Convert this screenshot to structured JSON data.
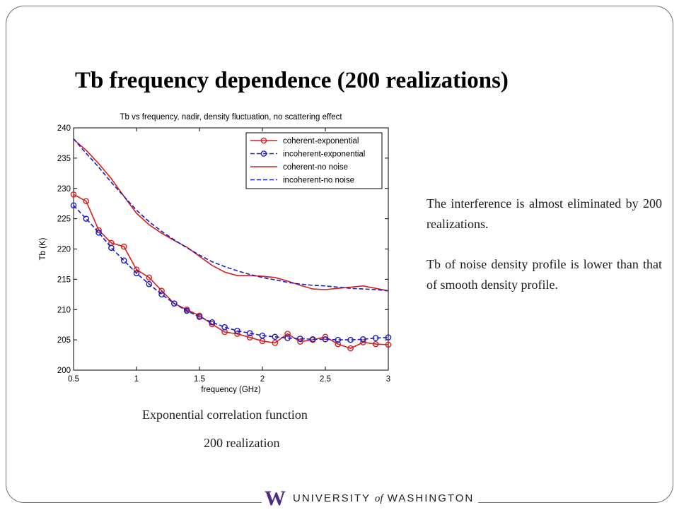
{
  "slide": {
    "title": "Tb frequency dependence (200 realizations)",
    "captions": [
      "Exponential correlation function",
      "200 realization"
    ],
    "paragraphs": [
      "The interference is almost eliminated by 200 realizations.",
      "Tb of noise density profile is lower than that of smooth density profile."
    ],
    "footer": {
      "mark": "W",
      "name_pre": "UNIVERSITY ",
      "name_of": "of",
      "name_post": " WASHINGTON",
      "brand_color": "#4b2e83"
    }
  },
  "chart_data": {
    "type": "line",
    "title": "Tb vs frequency, nadir, density fluctuation, no scattering effect",
    "xlabel": "frequency (GHz)",
    "ylabel": "Tb (K)",
    "xlim": [
      0.5,
      3
    ],
    "ylim": [
      200,
      240
    ],
    "xticks": [
      0.5,
      1,
      1.5,
      2,
      2.5,
      3
    ],
    "xtick_labels": [
      "0.5",
      "1",
      "1.5",
      "2",
      "2.5",
      "3"
    ],
    "yticks": [
      200,
      205,
      210,
      215,
      220,
      225,
      230,
      235,
      240
    ],
    "ytick_labels": [
      "200",
      "205",
      "210",
      "215",
      "220",
      "225",
      "230",
      "235",
      "240"
    ],
    "grid": false,
    "legend_position": "top-right",
    "series": [
      {
        "name": "coherent-exponential",
        "color": "#d42020",
        "dash": "solid",
        "marker": "circle",
        "x": [
          0.5,
          0.6,
          0.7,
          0.8,
          0.9,
          1.0,
          1.1,
          1.2,
          1.3,
          1.4,
          1.5,
          1.6,
          1.7,
          1.8,
          1.9,
          2.0,
          2.1,
          2.2,
          2.3,
          2.4,
          2.5,
          2.6,
          2.7,
          2.8,
          2.9,
          3.0
        ],
        "y": [
          229.0,
          227.9,
          223.1,
          221.0,
          220.4,
          216.6,
          215.3,
          213.1,
          211.0,
          210.0,
          209.0,
          207.6,
          206.3,
          206.0,
          205.4,
          204.8,
          204.5,
          206.0,
          204.7,
          205.0,
          205.5,
          204.3,
          203.6,
          204.6,
          204.3,
          204.2
        ]
      },
      {
        "name": "incoherent-exponential",
        "color": "#1c1cc4",
        "dash": "dashed",
        "marker": "circle",
        "x": [
          0.5,
          0.6,
          0.7,
          0.8,
          0.9,
          1.0,
          1.1,
          1.2,
          1.3,
          1.4,
          1.5,
          1.6,
          1.7,
          1.8,
          1.9,
          2.0,
          2.1,
          2.2,
          2.3,
          2.4,
          2.5,
          2.6,
          2.7,
          2.8,
          2.9,
          3.0
        ],
        "y": [
          227.2,
          225.0,
          222.7,
          220.2,
          218.1,
          216.0,
          214.2,
          212.5,
          211.0,
          209.8,
          208.8,
          207.9,
          207.1,
          206.5,
          206.1,
          205.7,
          205.5,
          205.3,
          205.2,
          205.1,
          205.1,
          205.0,
          205.0,
          205.1,
          205.3,
          205.4
        ]
      },
      {
        "name": "coherent-no noise",
        "color": "#d42020",
        "dash": "solid",
        "marker": "none",
        "x": [
          0.5,
          0.6,
          0.7,
          0.8,
          0.9,
          1.0,
          1.1,
          1.2,
          1.3,
          1.4,
          1.5,
          1.6,
          1.7,
          1.8,
          1.9,
          2.0,
          2.1,
          2.2,
          2.3,
          2.4,
          2.5,
          2.6,
          2.7,
          2.8,
          2.9,
          3.0
        ],
        "y": [
          238.1,
          236.3,
          234.1,
          231.6,
          228.7,
          225.9,
          224.0,
          222.6,
          221.4,
          220.3,
          218.8,
          217.3,
          216.2,
          215.6,
          215.6,
          215.5,
          215.3,
          214.7,
          214.0,
          213.4,
          213.3,
          213.5,
          213.7,
          213.9,
          213.5,
          213.1
        ]
      },
      {
        "name": "incoherent-no noise",
        "color": "#1c1cc4",
        "dash": "dashed",
        "marker": "none",
        "x": [
          0.5,
          0.6,
          0.7,
          0.8,
          0.9,
          1.0,
          1.1,
          1.2,
          1.3,
          1.4,
          1.5,
          1.6,
          1.7,
          1.8,
          1.9,
          2.0,
          2.1,
          2.2,
          2.3,
          2.4,
          2.5,
          2.6,
          2.7,
          2.8,
          2.9,
          3.0
        ],
        "y": [
          238.2,
          235.8,
          233.5,
          231.0,
          228.7,
          226.4,
          224.5,
          222.9,
          221.5,
          220.2,
          219.0,
          217.9,
          217.1,
          216.4,
          215.8,
          215.3,
          214.9,
          214.5,
          214.2,
          214.0,
          213.9,
          213.7,
          213.5,
          213.4,
          213.3,
          213.1
        ]
      }
    ]
  }
}
